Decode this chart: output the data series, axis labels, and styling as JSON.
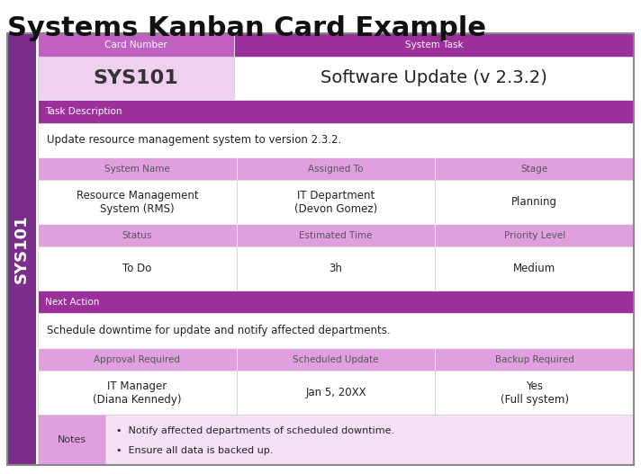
{
  "title": "Systems Kanban Card Example",
  "title_fontsize": 22,
  "title_fontweight": "bold",
  "card_id": "SYS101",
  "background_color": "#ffffff",
  "purple_dark": "#7b2d8b",
  "purple_medium": "#c060c0",
  "purple_light": "#e8b4e8",
  "purple_very_light": "#f5e0f5",
  "white": "#ffffff",
  "border_color": "#888888",
  "header_text_color": "#ffffff",
  "subheader_text_color": "#ffffff",
  "label_text_color": "#333333",
  "rows": [
    {
      "type": "header2col",
      "col1_label": "Card Number",
      "col2_label": "System Task",
      "col1_bg": "#c060c0",
      "col2_bg": "#9b309b",
      "label_color": "#ffffff"
    },
    {
      "type": "data2col",
      "col1_value": "SYS101",
      "col2_value": "Software Update (v 2.3.2)",
      "col1_bg": "#f0d0f0",
      "col2_bg": "#ffffff",
      "col1_fontsize": 16,
      "col2_fontsize": 14,
      "col1_bold": true,
      "col2_bold": false
    },
    {
      "type": "section_header",
      "label": "Task Description",
      "bg": "#9b309b",
      "label_color": "#ffffff"
    },
    {
      "type": "full_text",
      "text": "Update resource management system to version 2.3.2.",
      "bg": "#ffffff"
    },
    {
      "type": "header3col",
      "col1_label": "System Name",
      "col2_label": "Assigned To",
      "col3_label": "Stage",
      "bg": "#e0a0e0",
      "label_color": "#555555"
    },
    {
      "type": "data3col",
      "col1_value": "Resource Management\nSystem (RMS)",
      "col2_value": "IT Department\n(Devon Gomez)",
      "col3_value": "Planning",
      "bg": "#ffffff"
    },
    {
      "type": "header3col",
      "col1_label": "Status",
      "col2_label": "Estimated Time",
      "col3_label": "Priority Level",
      "bg": "#e0a0e0",
      "label_color": "#555555"
    },
    {
      "type": "data3col",
      "col1_value": "To Do",
      "col2_value": "3h",
      "col3_value": "Medium",
      "bg": "#ffffff"
    },
    {
      "type": "section_header",
      "label": "Next Action",
      "bg": "#9b309b",
      "label_color": "#ffffff"
    },
    {
      "type": "full_text",
      "text": "Schedule downtime for update and notify affected departments.",
      "bg": "#ffffff"
    },
    {
      "type": "header3col",
      "col1_label": "Approval Required",
      "col2_label": "Scheduled Update",
      "col3_label": "Backup Required",
      "bg": "#e0a0e0",
      "label_color": "#555555"
    },
    {
      "type": "data3col",
      "col1_value": "IT Manager\n(Diana Kennedy)",
      "col2_value": "Jan 5, 20XX",
      "col3_value": "Yes\n(Full system)",
      "bg": "#ffffff"
    },
    {
      "type": "notes",
      "label": "Notes",
      "items": [
        "Notify affected departments of scheduled downtime.",
        "Ensure all data is backed up."
      ],
      "label_bg": "#e0a0e0",
      "content_bg": "#f5e0f5"
    }
  ]
}
